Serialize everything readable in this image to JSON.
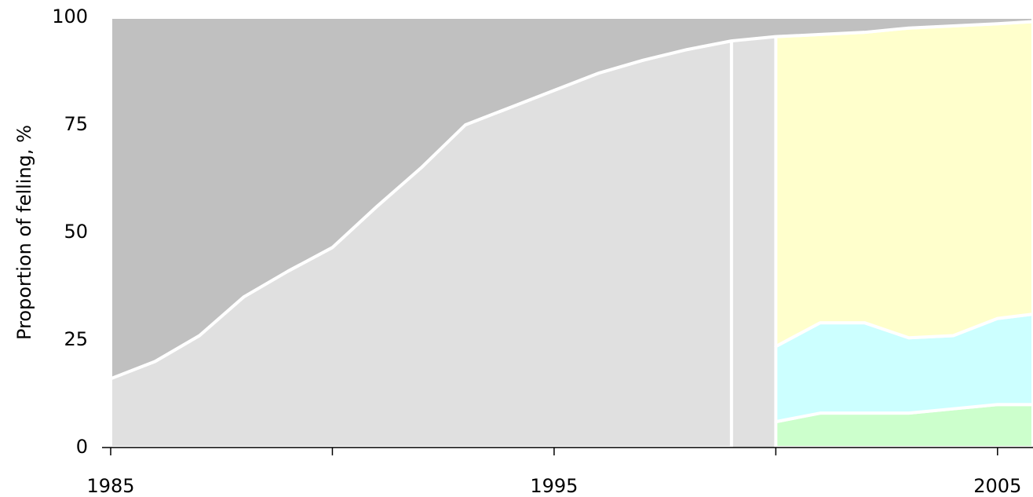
{
  "chart_data": {
    "type": "stacked_area",
    "y_label": "Proportion of felling, %",
    "x": [
      1985,
      1986,
      1987,
      1988,
      1989,
      1990,
      1991,
      1992,
      1993,
      1994,
      1995,
      1996,
      1997,
      1998,
      1999,
      2000,
      2001,
      2002,
      2003,
      2004,
      2005,
      2005.8
    ],
    "series": [
      {
        "color": "#e0e0e0",
        "values": [
          16,
          20,
          26,
          35,
          41,
          46.5,
          56,
          65,
          75,
          79,
          83,
          87,
          90,
          92.5,
          94.5,
          null,
          null,
          null,
          null,
          null,
          null,
          null
        ]
      },
      {
        "color": "#ccffcc",
        "values": [
          null,
          null,
          null,
          null,
          null,
          null,
          null,
          null,
          null,
          null,
          null,
          null,
          null,
          null,
          null,
          6,
          8,
          8,
          8,
          9,
          10,
          10
        ]
      },
      {
        "color": "#ccffff",
        "values": [
          null,
          null,
          null,
          null,
          null,
          null,
          null,
          null,
          null,
          null,
          null,
          null,
          null,
          null,
          null,
          17.5,
          21,
          21,
          17.5,
          17,
          20,
          21
        ]
      },
      {
        "color": "#ffffcc",
        "values": [
          null,
          null,
          null,
          null,
          null,
          null,
          null,
          null,
          null,
          null,
          null,
          null,
          null,
          null,
          null,
          72,
          67,
          67.5,
          72,
          72,
          68.5,
          68
        ]
      },
      {
        "color": "#c0c0c0",
        "values": [
          84,
          80,
          74,
          65,
          59,
          53.5,
          44,
          35,
          25,
          21,
          17,
          13,
          10,
          7.5,
          5.5,
          4.5,
          4,
          3.5,
          2.5,
          2,
          1.5,
          1
        ]
      }
    ],
    "xlim": [
      1985,
      2005.8
    ],
    "xticks": [
      1985,
      1995,
      2005
    ],
    "minor_xticks": [
      1990,
      2000
    ],
    "ylim": [
      0,
      100
    ],
    "yticks": [
      0,
      25,
      50,
      75,
      100
    ]
  }
}
